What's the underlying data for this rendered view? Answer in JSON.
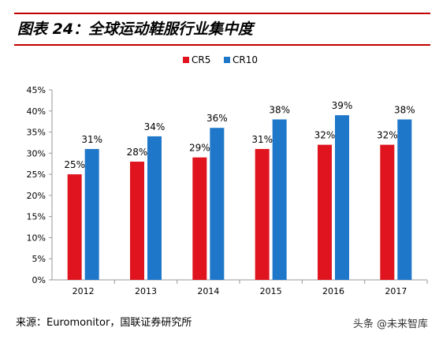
{
  "title": "图表 24：全球运动鞋服行业集中度",
  "source": "来源：Euromonitor，国联证券研究所",
  "watermark": "头条 @未来智库",
  "chart_data": {
    "type": "bar",
    "categories": [
      "2012",
      "2013",
      "2014",
      "2015",
      "2016",
      "2017"
    ],
    "series": [
      {
        "name": "CR5",
        "color": "#e0141e",
        "values": [
          25,
          28,
          29,
          31,
          32,
          32
        ],
        "labels": [
          "25%",
          "28%",
          "29%",
          "31%",
          "32%",
          "32%"
        ]
      },
      {
        "name": "CR10",
        "color": "#1f77c9",
        "values": [
          31,
          34,
          36,
          38,
          39,
          38
        ],
        "labels": [
          "31%",
          "34%",
          "36%",
          "38%",
          "39%",
          "38%"
        ]
      }
    ],
    "ylim": [
      0,
      45
    ],
    "yticks": [
      "0%",
      "5%",
      "10%",
      "15%",
      "20%",
      "25%",
      "30%",
      "35%",
      "40%",
      "45%"
    ],
    "legend": "top-center",
    "grid": false
  }
}
